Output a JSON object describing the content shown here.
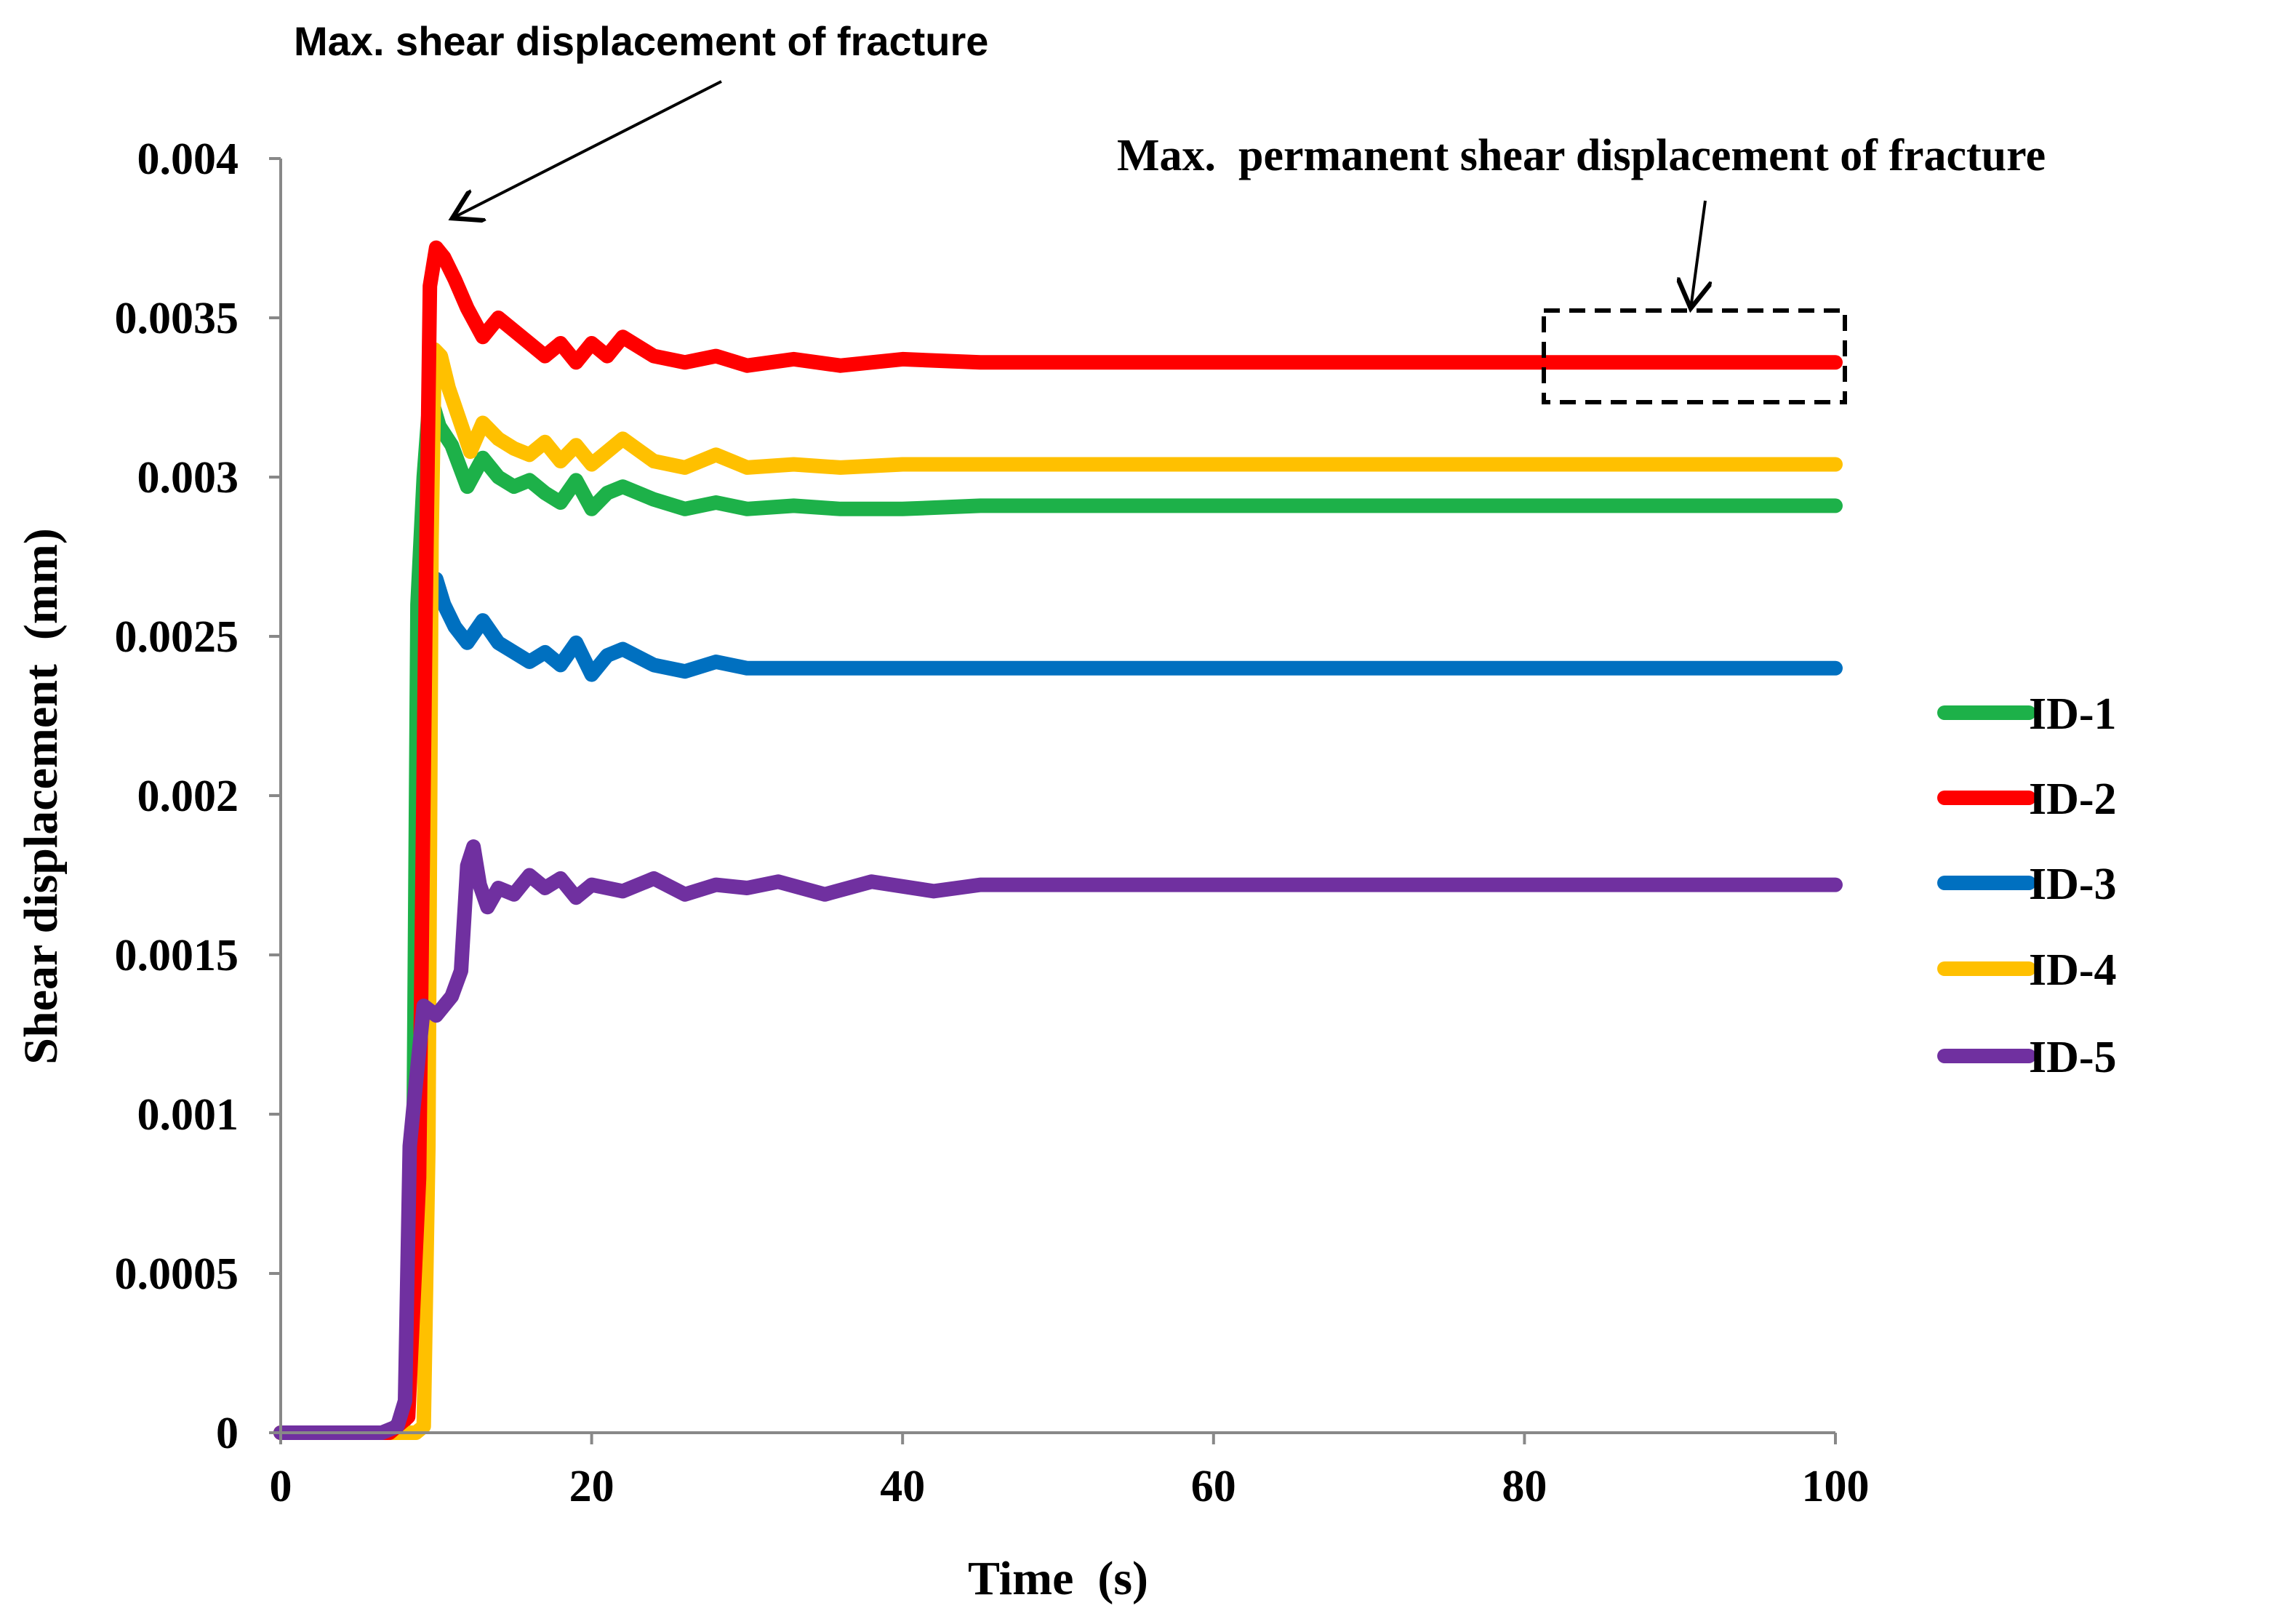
{
  "chart_data": {
    "type": "line",
    "xlabel": "Time  (s)",
    "ylabel": "Shear displacement  (mm)",
    "xlim": [
      0,
      100
    ],
    "ylim": [
      0,
      0.004
    ],
    "x_ticks": [
      0,
      20,
      40,
      60,
      80,
      100
    ],
    "x_tick_labels": [
      "0",
      "20",
      "40",
      "60",
      "80",
      "100"
    ],
    "y_ticks": [
      0,
      0.0005,
      0.001,
      0.0015,
      0.002,
      0.0025,
      0.003,
      0.0035,
      0.004
    ],
    "y_tick_labels": [
      "0",
      "0.0005",
      "0.001",
      "0.0015",
      "0.002",
      "0.0025",
      "0.003",
      "0.0035",
      "0.004"
    ],
    "grid": false,
    "legend_position": "right",
    "annotations": {
      "peak_label": "Max. shear displacement of fracture",
      "permanent_label": "Max.  permanent shear displacement of fracture"
    },
    "series": [
      {
        "name": "ID-1",
        "color": "#1DB149",
        "x": [
          0,
          7,
          8,
          8.5,
          8.8,
          9.2,
          9.6,
          10.2,
          11,
          12,
          13,
          14,
          15,
          16,
          17,
          18,
          19,
          20,
          21,
          22,
          24,
          26,
          28,
          30,
          33,
          36,
          40,
          45,
          50,
          60,
          70,
          80,
          90,
          100
        ],
        "values": [
          0,
          0,
          5e-05,
          0.0006,
          0.0026,
          0.003,
          0.00326,
          0.00316,
          0.0031,
          0.00297,
          0.00306,
          0.003,
          0.00297,
          0.00299,
          0.00295,
          0.00292,
          0.00299,
          0.0029,
          0.00295,
          0.00297,
          0.00293,
          0.0029,
          0.00292,
          0.0029,
          0.00291,
          0.0029,
          0.0029,
          0.00291,
          0.00291,
          0.00291,
          0.00291,
          0.00291,
          0.00291,
          0.00291
        ]
      },
      {
        "name": "ID-2",
        "color": "#FF0000",
        "x": [
          0,
          7,
          8.2,
          8.9,
          9.3,
          9.6,
          10,
          10.5,
          11.2,
          12,
          13,
          14,
          15,
          16,
          17,
          18,
          19,
          20,
          21,
          22,
          24,
          26,
          28,
          30,
          33,
          36,
          40,
          45,
          50,
          60,
          70,
          80,
          90,
          100
        ],
        "values": [
          0,
          0,
          5e-05,
          0.0008,
          0.0025,
          0.0036,
          0.00372,
          0.00369,
          0.00362,
          0.00353,
          0.00344,
          0.0035,
          0.00346,
          0.00342,
          0.00338,
          0.00342,
          0.00336,
          0.00342,
          0.00338,
          0.00344,
          0.00338,
          0.00336,
          0.00338,
          0.00335,
          0.00337,
          0.00335,
          0.00337,
          0.00336,
          0.00336,
          0.00336,
          0.00336,
          0.00336,
          0.00336,
          0.00336
        ]
      },
      {
        "name": "ID-3",
        "color": "#0070C0",
        "x": [
          0,
          7,
          8,
          8.6,
          9.2,
          9.6,
          10,
          10.5,
          11.2,
          12,
          13,
          14,
          15,
          16,
          17,
          18,
          19,
          20,
          21,
          22,
          24,
          26,
          28,
          30,
          33,
          36,
          40,
          45,
          50,
          60,
          70,
          80,
          90,
          100
        ],
        "values": [
          0,
          0,
          4e-05,
          0.0005,
          0.0018,
          0.00265,
          0.00268,
          0.0026,
          0.00253,
          0.00248,
          0.00255,
          0.00248,
          0.00245,
          0.00242,
          0.00245,
          0.00241,
          0.00248,
          0.00238,
          0.00244,
          0.00246,
          0.00241,
          0.00239,
          0.00242,
          0.0024,
          0.0024,
          0.0024,
          0.0024,
          0.0024,
          0.0024,
          0.0024,
          0.0024,
          0.0024,
          0.0024,
          0.0024
        ]
      },
      {
        "name": "ID-4",
        "color": "#FFC000",
        "x": [
          0,
          8.7,
          9.2,
          9.5,
          9.7,
          9.9,
          10.3,
          10.8,
          11.5,
          12.2,
          13,
          14,
          15,
          16,
          17,
          18,
          19,
          20,
          21,
          22,
          24,
          26,
          28,
          30,
          33,
          36,
          40,
          45,
          50,
          60,
          70,
          80,
          90,
          100
        ],
        "values": [
          0,
          0,
          2e-05,
          0.0009,
          0.0028,
          0.0034,
          0.00338,
          0.00328,
          0.00318,
          0.00308,
          0.00317,
          0.00312,
          0.00309,
          0.00307,
          0.00311,
          0.00305,
          0.0031,
          0.00304,
          0.00308,
          0.00312,
          0.00305,
          0.00303,
          0.00307,
          0.00303,
          0.00304,
          0.00303,
          0.00304,
          0.00304,
          0.00304,
          0.00304,
          0.00304,
          0.00304,
          0.00304,
          0.00304
        ]
      },
      {
        "name": "ID-5",
        "color": "#7030A0",
        "x": [
          0,
          6.5,
          7.5,
          8,
          8.3,
          8.7,
          9.2,
          10,
          11,
          11.6,
          12,
          12.4,
          12.8,
          13.3,
          14,
          15,
          16,
          17,
          18,
          19,
          20,
          22,
          24,
          26,
          28,
          30,
          32,
          35,
          38,
          42,
          45,
          50,
          60,
          70,
          80,
          90,
          100
        ],
        "values": [
          0,
          0,
          2e-05,
          0.0001,
          0.0009,
          0.0011,
          0.00134,
          0.00131,
          0.00137,
          0.00145,
          0.00178,
          0.00184,
          0.00172,
          0.00165,
          0.00171,
          0.00169,
          0.00175,
          0.00171,
          0.00174,
          0.00168,
          0.00172,
          0.0017,
          0.00174,
          0.00169,
          0.00172,
          0.00171,
          0.00173,
          0.00169,
          0.00173,
          0.0017,
          0.00172,
          0.00172,
          0.00172,
          0.00172,
          0.00172,
          0.00172,
          0.00172
        ]
      }
    ]
  }
}
